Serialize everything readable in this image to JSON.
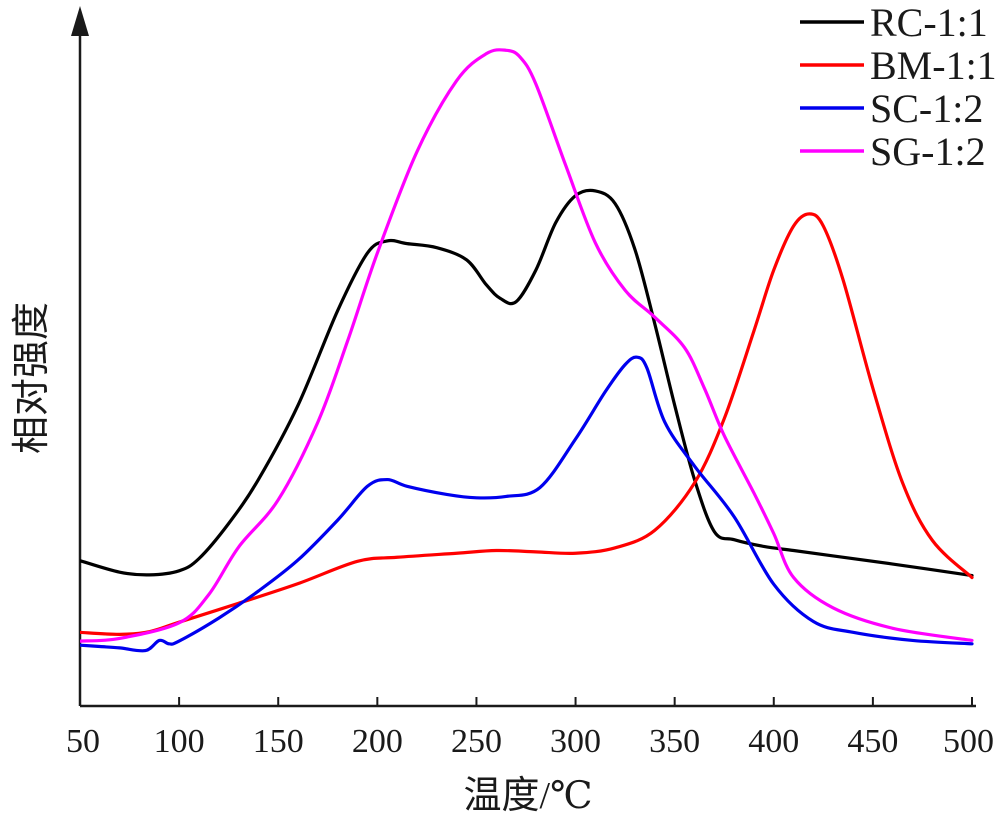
{
  "chart_data": {
    "type": "line",
    "xlabel": "温度/℃",
    "ylabel": "相对强度",
    "xlim": [
      50,
      500
    ],
    "x_ticks": [
      "50",
      "100",
      "150",
      "200",
      "250",
      "300",
      "350",
      "400",
      "450",
      "500"
    ],
    "y_ticks_shown": false,
    "grid": false,
    "legend_position": "top-right",
    "ylim": [
      0,
      100
    ],
    "series": [
      {
        "name": "RC-1:1",
        "color": "#000000",
        "x": [
          50,
          70,
          85,
          100,
          110,
          125,
          140,
          160,
          180,
          195,
          205,
          215,
          230,
          245,
          255,
          262,
          270,
          280,
          290,
          300,
          310,
          320,
          330,
          340,
          350,
          360,
          370,
          380,
          395,
          410,
          430,
          460,
          500
        ],
        "y": [
          21.5,
          19.8,
          19.4,
          20.0,
          21.8,
          27.0,
          33.5,
          44.5,
          58.5,
          67.0,
          68.8,
          68.4,
          67.8,
          66.0,
          62.3,
          60.3,
          59.8,
          64.5,
          71.5,
          75.5,
          76.2,
          74.3,
          67.5,
          56.5,
          44.5,
          33.5,
          25.8,
          24.6,
          23.6,
          23.0,
          22.2,
          21.0,
          19.3
        ]
      },
      {
        "name": "BM-1:1",
        "color": "#ff0000",
        "x": [
          50,
          70,
          85,
          100,
          130,
          160,
          190,
          210,
          240,
          260,
          280,
          300,
          320,
          340,
          360,
          375,
          390,
          400,
          410,
          418,
          425,
          435,
          450,
          465,
          480,
          500
        ],
        "y": [
          10.9,
          10.6,
          11.0,
          12.4,
          15.2,
          18.1,
          21.4,
          22.0,
          22.6,
          23.0,
          22.8,
          22.6,
          23.4,
          26.0,
          33.0,
          42.5,
          55.5,
          64.5,
          71.0,
          72.8,
          71.0,
          63.0,
          47.0,
          33.0,
          24.5,
          19.0
        ]
      },
      {
        "name": "SC-1:2",
        "color": "#0000ee",
        "x": [
          50,
          60,
          70,
          83,
          90,
          95,
          100,
          120,
          140,
          160,
          180,
          195,
          205,
          215,
          235,
          250,
          265,
          282,
          300,
          315,
          325,
          331,
          336,
          345,
          360,
          380,
          400,
          420,
          440,
          470,
          500
        ],
        "y": [
          9.0,
          8.8,
          8.6,
          8.2,
          9.7,
          9.2,
          9.6,
          13.0,
          17.0,
          21.6,
          27.5,
          32.5,
          33.5,
          32.5,
          31.3,
          30.8,
          31.0,
          32.3,
          39.5,
          46.5,
          50.5,
          51.6,
          50.0,
          42.0,
          35.5,
          28.0,
          18.0,
          12.5,
          10.9,
          9.7,
          9.2
        ]
      },
      {
        "name": "SG-1:2",
        "color": "#ff00ff",
        "x": [
          50,
          70,
          100,
          115,
          130,
          150,
          170,
          185,
          200,
          220,
          240,
          255,
          265,
          272,
          280,
          295,
          310,
          325,
          340,
          355,
          365,
          375,
          390,
          400,
          410,
          430,
          460,
          500
        ],
        "y": [
          9.6,
          10.0,
          12.3,
          16.5,
          23.5,
          30.5,
          42.0,
          54.0,
          67.0,
          82.0,
          92.5,
          96.5,
          97.0,
          96.0,
          92.0,
          80.0,
          68.5,
          61.5,
          57.5,
          53.0,
          47.0,
          40.0,
          31.5,
          25.5,
          19.0,
          14.5,
          11.5,
          9.7
        ]
      }
    ]
  }
}
